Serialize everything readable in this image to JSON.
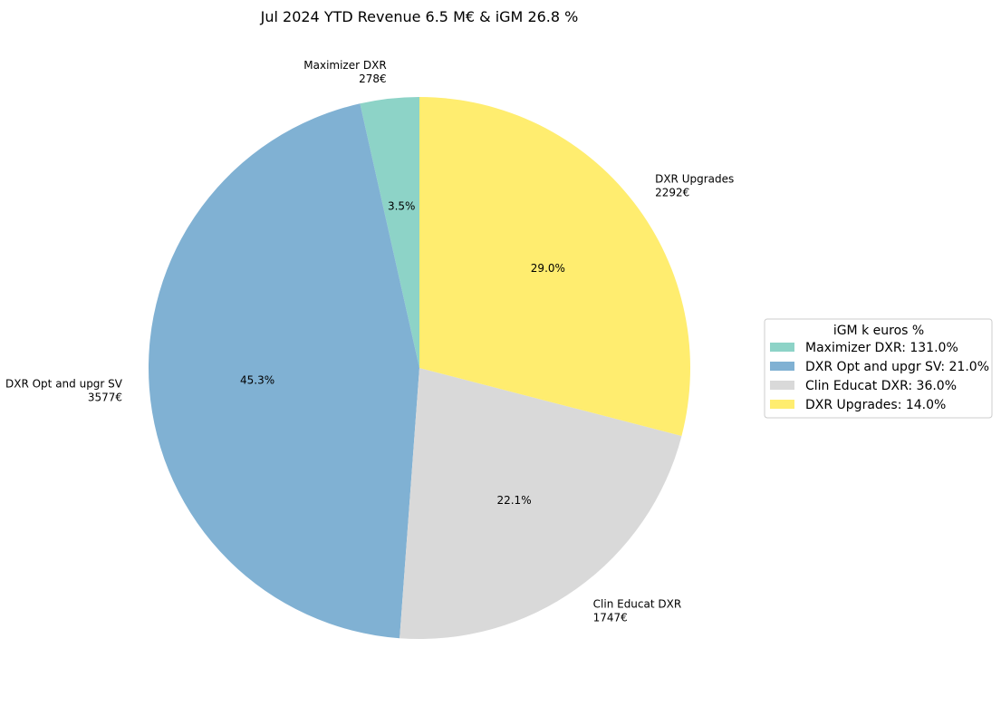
{
  "chart_data": {
    "type": "pie",
    "title": "Jul 2024 YTD Revenue 6.5 M€ & iGM 26.8 %",
    "categories": [
      "Maximizer DXR",
      "DXR Opt and upgr SV",
      "Clin Educat DXR",
      "DXR Upgrades"
    ],
    "values": [
      278,
      3577,
      1747,
      2292
    ],
    "value_labels": [
      "278€",
      "3577€",
      "1747€",
      "2292€"
    ],
    "percent_labels": [
      "3.5%",
      "45.3%",
      "22.1%",
      "29.0%"
    ],
    "colors": [
      "#8dd3c7",
      "#80b1d3",
      "#d9d9d9",
      "#ffed6f"
    ],
    "start_angle_deg": 90,
    "direction": "counterclockwise",
    "legend": {
      "title": "iGM k euros %",
      "placement": "right",
      "entries": [
        "Maximizer DXR: 131.0%",
        "DXR Opt and upgr SV: 21.0%",
        "Clin Educat DXR: 36.0%",
        "DXR Upgrades: 14.0%"
      ]
    }
  }
}
